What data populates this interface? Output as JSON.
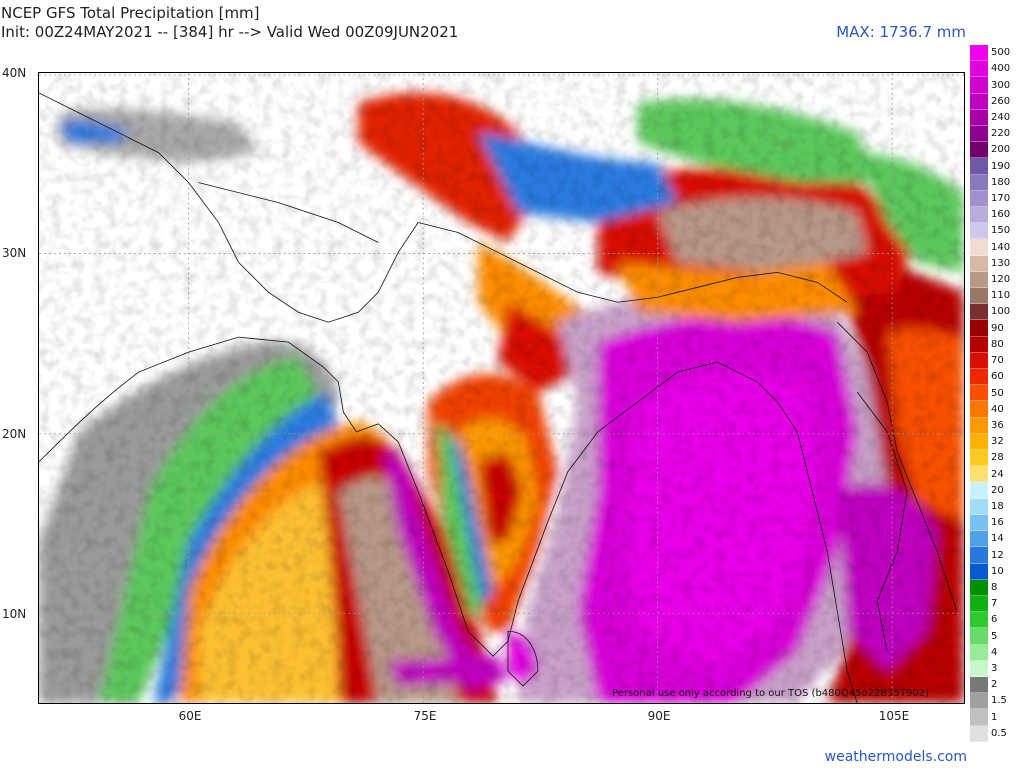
{
  "header": {
    "title_line1": "NCEP GFS Total Precipitation [mm]",
    "title_line2": "Init: 00Z24MAY2021 -- [384] hr --> Valid Wed 00Z09JUN2021",
    "max_label": "MAX: 1736.7 mm"
  },
  "map": {
    "lat_labels": [
      "40N",
      "30N",
      "20N",
      "10N"
    ],
    "lon_labels": [
      "60E",
      "75E",
      "90E",
      "105E"
    ],
    "watermark": "Personal use only according to our TOS (b480Q45o22B35T902)"
  },
  "colorbar": {
    "levels": [
      {
        "label": "500",
        "color": "#f000f0"
      },
      {
        "label": "400",
        "color": "#e000e0"
      },
      {
        "label": "300",
        "color": "#d000d0"
      },
      {
        "label": "260",
        "color": "#c000c0"
      },
      {
        "label": "240",
        "color": "#a800a8"
      },
      {
        "label": "220",
        "color": "#900090"
      },
      {
        "label": "200",
        "color": "#700070"
      },
      {
        "label": "190",
        "color": "#7058a8"
      },
      {
        "label": "180",
        "color": "#8878bc"
      },
      {
        "label": "170",
        "color": "#a090cc"
      },
      {
        "label": "160",
        "color": "#b8acdc"
      },
      {
        "label": "150",
        "color": "#d0c8ea"
      },
      {
        "label": "140",
        "color": "#f0dcd0"
      },
      {
        "label": "130",
        "color": "#d8b8a8"
      },
      {
        "label": "120",
        "color": "#b89888"
      },
      {
        "label": "110",
        "color": "#987868"
      },
      {
        "label": "100",
        "color": "#7a3030"
      },
      {
        "label": "90",
        "color": "#9a0000"
      },
      {
        "label": "80",
        "color": "#b80000"
      },
      {
        "label": "70",
        "color": "#d81000"
      },
      {
        "label": "60",
        "color": "#f02800"
      },
      {
        "label": "50",
        "color": "#f85000"
      },
      {
        "label": "40",
        "color": "#fa7800"
      },
      {
        "label": "36",
        "color": "#fc9800"
      },
      {
        "label": "32",
        "color": "#fdb000"
      },
      {
        "label": "28",
        "color": "#fdc820"
      },
      {
        "label": "24",
        "color": "#fde070"
      },
      {
        "label": "20",
        "color": "#c8f0ff"
      },
      {
        "label": "18",
        "color": "#a0dcf8"
      },
      {
        "label": "16",
        "color": "#78c0f0"
      },
      {
        "label": "14",
        "color": "#50a0e8"
      },
      {
        "label": "12",
        "color": "#2878e0"
      },
      {
        "label": "10",
        "color": "#0858d0"
      },
      {
        "label": "8",
        "color": "#009000"
      },
      {
        "label": "7",
        "color": "#10b010"
      },
      {
        "label": "6",
        "color": "#30c830"
      },
      {
        "label": "5",
        "color": "#68dc68"
      },
      {
        "label": "4",
        "color": "#98ec98"
      },
      {
        "label": "3",
        "color": "#c8f8c8"
      },
      {
        "label": "2",
        "color": "#787878"
      },
      {
        "label": "1.5",
        "color": "#a0a0a0"
      },
      {
        "label": "1",
        "color": "#c0c0c0"
      },
      {
        "label": "0.5",
        "color": "#e0e0e0"
      }
    ]
  },
  "footer": {
    "site": "weathermodels.com"
  }
}
